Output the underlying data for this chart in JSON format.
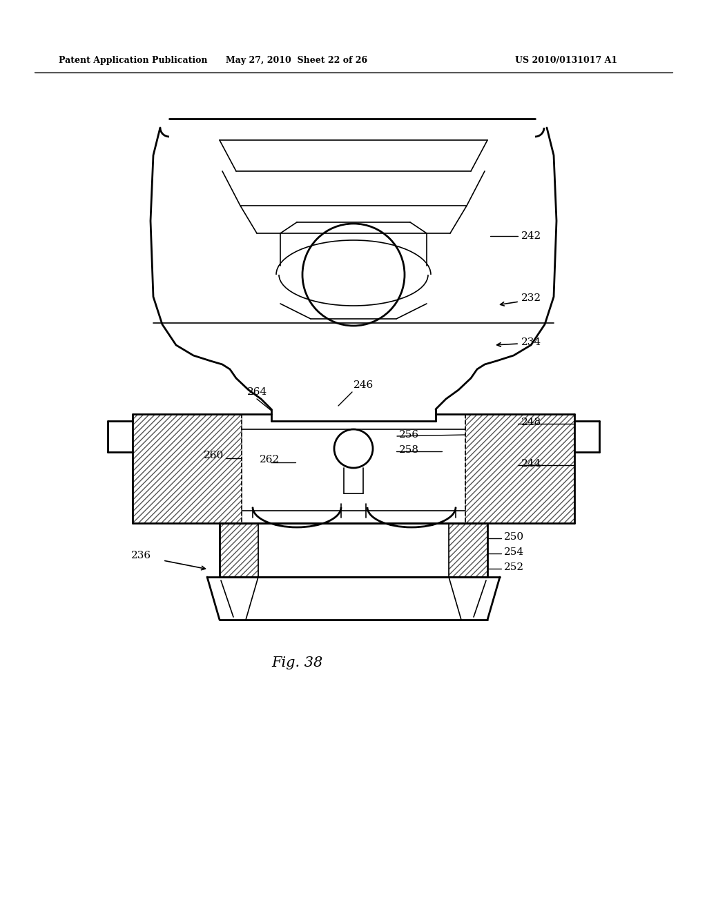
{
  "bg_color": "#ffffff",
  "line_color": "#000000",
  "header_left": "Patent Application Publication",
  "header_mid": "May 27, 2010  Sheet 22 of 26",
  "header_right": "US 2010/0131017 A1",
  "fig_label": "Fig. 38"
}
